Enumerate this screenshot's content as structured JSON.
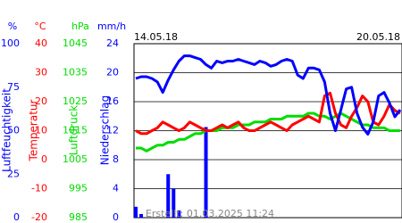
{
  "chart_data": {
    "type": "line",
    "date_start": "14.05.18",
    "date_end": "20.05.18",
    "footer": "Erstellt: 01.03.2025 11:24",
    "axes": [
      {
        "unit": "%",
        "title": "Luftfeuchtigkeit",
        "color": "#0000ff",
        "lim": [
          0,
          100
        ],
        "ticks": [
          100,
          75,
          50,
          25,
          0
        ]
      },
      {
        "unit": "°C",
        "title": "Temperatur",
        "color": "#ff0000",
        "lim": [
          -20,
          40
        ],
        "ticks": [
          40,
          30,
          20,
          10,
          0,
          -10,
          -20
        ]
      },
      {
        "unit": "hPa",
        "title": "Luftdruck",
        "color": "#00dd00",
        "lim": [
          985,
          1045
        ],
        "ticks": [
          1045,
          1035,
          1025,
          1015,
          1005,
          995,
          985
        ]
      },
      {
        "unit": "mm/h",
        "title": "Niederschlag",
        "color": "#0000ff",
        "lim": [
          0,
          24
        ],
        "ticks": [
          24,
          20,
          16,
          12,
          8,
          4,
          0
        ]
      }
    ],
    "grid": true,
    "series": [
      {
        "name": "Luftfeuchtigkeit",
        "axis": 0,
        "kind": "line",
        "color": "#0000ff",
        "values": [
          80,
          81,
          81,
          80,
          78,
          72,
          79,
          85,
          90,
          93,
          93,
          92,
          91,
          88,
          86,
          90,
          89,
          90,
          90,
          91,
          90,
          89,
          88,
          90,
          89,
          87,
          88,
          90,
          91,
          90,
          82,
          80,
          86,
          86,
          85,
          78,
          60,
          50,
          62,
          74,
          75,
          60,
          52,
          48,
          55,
          70,
          72,
          66,
          58,
          62
        ]
      },
      {
        "name": "Temperatur",
        "axis": 1,
        "kind": "line",
        "color": "#ff0000",
        "values": [
          10,
          9,
          9,
          10,
          11,
          13,
          12,
          11,
          10,
          11,
          13,
          12,
          11,
          10,
          10,
          11,
          12,
          11,
          12,
          13,
          11,
          10,
          10,
          11,
          12,
          13,
          12,
          11,
          10,
          12,
          13,
          14,
          15,
          14,
          13,
          22,
          23,
          16,
          12,
          11,
          15,
          18,
          22,
          20,
          13,
          12,
          15,
          19,
          17,
          16
        ]
      },
      {
        "name": "Luftdruck",
        "axis": 2,
        "kind": "line",
        "color": "#00dd00",
        "values": [
          1009,
          1009,
          1008,
          1009,
          1010,
          1010,
          1011,
          1011,
          1012,
          1012,
          1013,
          1014,
          1014,
          1015,
          1015,
          1015,
          1016,
          1016,
          1016,
          1017,
          1017,
          1017,
          1018,
          1018,
          1018,
          1019,
          1019,
          1019,
          1020,
          1020,
          1020,
          1020,
          1021,
          1021,
          1020,
          1020,
          1019,
          1020,
          1021,
          1020,
          1019,
          1018,
          1017,
          1017,
          1016,
          1016,
          1016,
          1015,
          1015,
          1015
        ]
      },
      {
        "name": "Niederschlag",
        "axis": 3,
        "kind": "bar",
        "color": "#0000ff",
        "values": [
          1.5,
          0.5,
          0,
          0,
          0,
          0,
          6,
          4,
          1,
          0,
          0,
          0,
          0,
          12.5,
          0,
          0,
          0,
          0,
          0,
          0,
          0,
          0,
          0,
          0,
          0,
          0,
          0,
          0,
          0,
          0,
          0,
          0,
          0,
          0,
          0,
          0,
          0,
          0,
          0,
          0,
          0,
          0,
          0,
          0,
          0,
          0,
          0,
          0,
          0,
          0
        ]
      }
    ]
  }
}
